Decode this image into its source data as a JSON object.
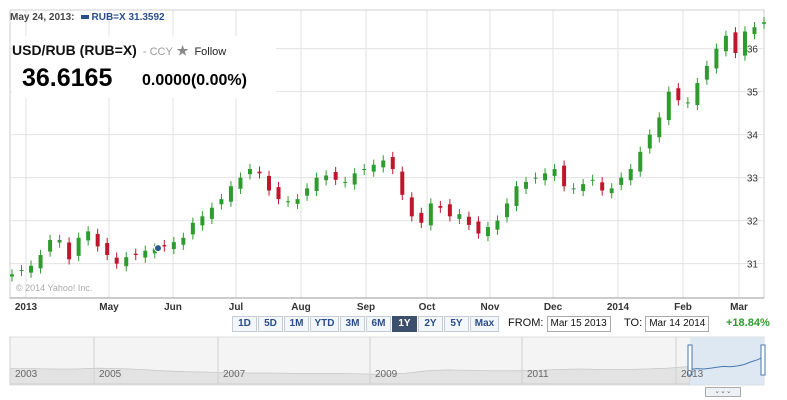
{
  "hover": {
    "date": "May 24, 2013:",
    "series": "RUB=X",
    "value": "31.3592"
  },
  "quote": {
    "title": "USD/RUB (RUB=X)",
    "type": "- CCY",
    "follow": "Follow",
    "price": "36.6165",
    "change": "0.0000(0.00%)"
  },
  "copyright": "© 2014 Yahoo! Inc.",
  "ranges": [
    {
      "label": "1D",
      "active": false
    },
    {
      "label": "5D",
      "active": false
    },
    {
      "label": "1M",
      "active": false
    },
    {
      "label": "YTD",
      "active": false
    },
    {
      "label": "3M",
      "active": false
    },
    {
      "label": "6M",
      "active": false
    },
    {
      "label": "1Y",
      "active": true
    },
    {
      "label": "2Y",
      "active": false
    },
    {
      "label": "5Y",
      "active": false
    },
    {
      "label": "Max",
      "active": false
    }
  ],
  "from_label": "FROM:",
  "from_value": "Mar 15 2013",
  "to_label": "TO:",
  "to_value": "Mar 14 2014",
  "period_change": "+18.84%",
  "navigator_years": [
    "2003",
    "2005",
    "2007",
    "2009",
    "2011",
    "2013"
  ],
  "colors": {
    "up": "#2e9b2e",
    "down": "#c0162c",
    "series": "#2a4e8c",
    "grid": "#e2e2e2"
  },
  "chart_data": {
    "type": "candlestick",
    "series_name": "RUB=X",
    "x_tick_labels": [
      "2013",
      "May",
      "Jun",
      "Jul",
      "Aug",
      "Sep",
      "Oct",
      "Nov",
      "Dec",
      "2014",
      "Feb",
      "Mar"
    ],
    "ylim": [
      30.2,
      36.9
    ],
    "yticks": [
      31,
      32,
      33,
      34,
      35,
      36
    ],
    "grid": true,
    "close_weekly": [
      30.75,
      30.85,
      30.95,
      31.2,
      31.55,
      31.55,
      31.1,
      31.6,
      31.75,
      31.4,
      31.2,
      31.0,
      31.15,
      31.2,
      31.3,
      31.35,
      31.4,
      31.5,
      31.6,
      31.95,
      32.1,
      32.3,
      32.5,
      32.8,
      33.0,
      33.2,
      33.1,
      32.7,
      32.5,
      32.45,
      32.5,
      32.75,
      33.0,
      33.05,
      32.95,
      32.9,
      33.1,
      33.2,
      33.3,
      33.4,
      33.2,
      32.6,
      32.1,
      31.95,
      32.4,
      32.3,
      32.1,
      32.15,
      31.9,
      31.7,
      31.85,
      32.0,
      32.4,
      32.8,
      32.9,
      33.0,
      33.1,
      33.2,
      32.8,
      32.75,
      32.85,
      32.95,
      32.7,
      32.75,
      33.0,
      33.2,
      33.6,
      34.0,
      34.4,
      35.0,
      34.8,
      34.75,
      35.2,
      35.6,
      36.0,
      36.3,
      35.9,
      36.4,
      36.5,
      36.6165
    ],
    "marker": {
      "label": "May 24, 2013",
      "value": 31.3592
    }
  }
}
